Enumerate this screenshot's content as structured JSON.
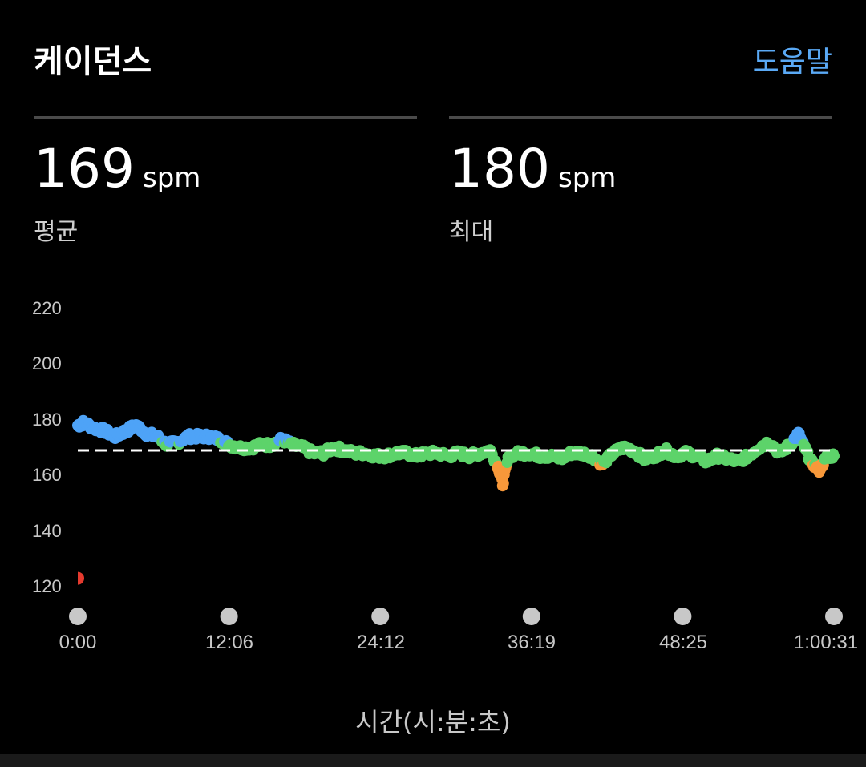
{
  "header": {
    "title": "케이던스",
    "help_label": "도움말"
  },
  "stats": [
    {
      "value": "169",
      "unit": "spm",
      "caption": "평균"
    },
    {
      "value": "180",
      "unit": "spm",
      "caption": "최대"
    }
  ],
  "chart_data": {
    "type": "scatter",
    "ylabel": "",
    "xlabel": "시간(시:분:초)",
    "y_ticks": [
      "220",
      "200",
      "180",
      "160",
      "140",
      "120"
    ],
    "x_ticks": [
      "0:00",
      "12:06",
      "24:12",
      "36:19",
      "48:25",
      "1:00:31"
    ],
    "ylim": [
      120,
      220
    ],
    "xlim_seconds": [
      0,
      3631
    ],
    "average_line": 169,
    "zone_colors": {
      "fast": "#4ea3f7",
      "normal": "#5dd36a",
      "slow": "#f7983a",
      "very_slow": "#e53a2e"
    },
    "zone_thresholds": {
      "fast_at_or_above": 172,
      "slow_below": 164,
      "very_slow_below": 130
    },
    "approx_series": [
      {
        "t": 0,
        "v": 178
      },
      {
        "t": 30,
        "v": 179
      },
      {
        "t": 80,
        "v": 177
      },
      {
        "t": 130,
        "v": 176
      },
      {
        "t": 180,
        "v": 174
      },
      {
        "t": 230,
        "v": 176
      },
      {
        "t": 280,
        "v": 178
      },
      {
        "t": 330,
        "v": 175
      },
      {
        "t": 380,
        "v": 174
      },
      {
        "t": 430,
        "v": 171
      },
      {
        "t": 480,
        "v": 172
      },
      {
        "t": 530,
        "v": 174
      },
      {
        "t": 580,
        "v": 174
      },
      {
        "t": 630,
        "v": 174
      },
      {
        "t": 680,
        "v": 173
      },
      {
        "t": 730,
        "v": 171
      },
      {
        "t": 780,
        "v": 170
      },
      {
        "t": 830,
        "v": 170
      },
      {
        "t": 880,
        "v": 171
      },
      {
        "t": 930,
        "v": 171
      },
      {
        "t": 980,
        "v": 173
      },
      {
        "t": 1030,
        "v": 171
      },
      {
        "t": 1080,
        "v": 170
      },
      {
        "t": 1130,
        "v": 168
      },
      {
        "t": 1180,
        "v": 168
      },
      {
        "t": 1230,
        "v": 170
      },
      {
        "t": 1280,
        "v": 169
      },
      {
        "t": 1330,
        "v": 168
      },
      {
        "t": 1380,
        "v": 168
      },
      {
        "t": 1430,
        "v": 167
      },
      {
        "t": 1480,
        "v": 167
      },
      {
        "t": 1530,
        "v": 168
      },
      {
        "t": 1580,
        "v": 168
      },
      {
        "t": 1630,
        "v": 167
      },
      {
        "t": 1680,
        "v": 168
      },
      {
        "t": 1730,
        "v": 168
      },
      {
        "t": 1780,
        "v": 167
      },
      {
        "t": 1830,
        "v": 168
      },
      {
        "t": 1880,
        "v": 167
      },
      {
        "t": 1930,
        "v": 168
      },
      {
        "t": 1980,
        "v": 169
      },
      {
        "t": 2020,
        "v": 163
      },
      {
        "t": 2040,
        "v": 157
      },
      {
        "t": 2070,
        "v": 167
      },
      {
        "t": 2120,
        "v": 168
      },
      {
        "t": 2170,
        "v": 168
      },
      {
        "t": 2220,
        "v": 167
      },
      {
        "t": 2270,
        "v": 167
      },
      {
        "t": 2320,
        "v": 166
      },
      {
        "t": 2370,
        "v": 168
      },
      {
        "t": 2420,
        "v": 168
      },
      {
        "t": 2470,
        "v": 167
      },
      {
        "t": 2520,
        "v": 164
      },
      {
        "t": 2570,
        "v": 168
      },
      {
        "t": 2620,
        "v": 170
      },
      {
        "t": 2670,
        "v": 169
      },
      {
        "t": 2720,
        "v": 166
      },
      {
        "t": 2770,
        "v": 167
      },
      {
        "t": 2820,
        "v": 169
      },
      {
        "t": 2870,
        "v": 167
      },
      {
        "t": 2920,
        "v": 168
      },
      {
        "t": 2970,
        "v": 167
      },
      {
        "t": 3020,
        "v": 165
      },
      {
        "t": 3070,
        "v": 167
      },
      {
        "t": 3120,
        "v": 166
      },
      {
        "t": 3170,
        "v": 165
      },
      {
        "t": 3220,
        "v": 167
      },
      {
        "t": 3270,
        "v": 170
      },
      {
        "t": 3320,
        "v": 172
      },
      {
        "t": 3370,
        "v": 168
      },
      {
        "t": 3420,
        "v": 171
      },
      {
        "t": 3460,
        "v": 175
      },
      {
        "t": 3490,
        "v": 170
      },
      {
        "t": 3520,
        "v": 165
      },
      {
        "t": 3560,
        "v": 162
      },
      {
        "t": 3600,
        "v": 167
      },
      {
        "t": 3631,
        "v": 167
      }
    ],
    "start_marker": {
      "t": 0,
      "v": 123
    }
  },
  "chart_colors": {
    "average_line": "#ffffff",
    "tick_dot": "#c8c8c8"
  }
}
